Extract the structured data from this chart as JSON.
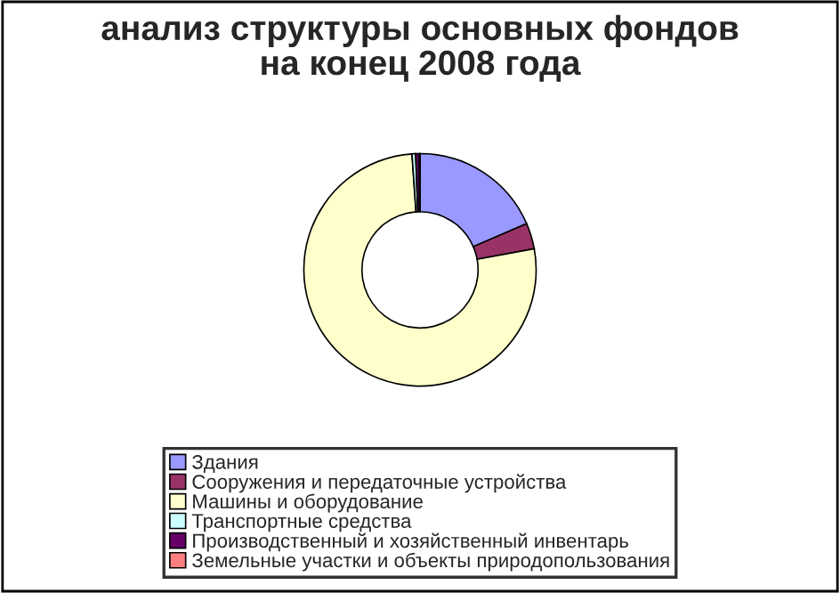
{
  "chart_data": {
    "type": "donut",
    "title": "анализ структуры основных фондов\nна конец 2008 года",
    "categories": [
      "Здания",
      "Сооружения и передаточные устройства",
      "Машины и оборудование",
      "Транспортные средства",
      "Производственный и хозяйственный инвентарь",
      "Земельные участки и объекты природопользования"
    ],
    "values": [
      18.5,
      3.6,
      76.8,
      0.5,
      0.5,
      0.1
    ],
    "colors": [
      "#9999ff",
      "#993366",
      "#ffffcc",
      "#ccffff",
      "#660066",
      "#ff8080"
    ],
    "legend": "bottom"
  }
}
